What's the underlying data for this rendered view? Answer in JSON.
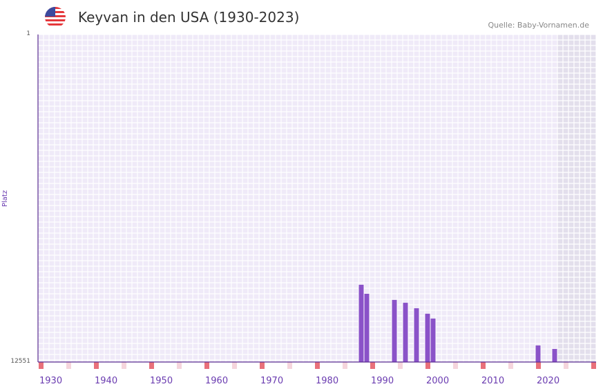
{
  "header": {
    "title": "Keyvan in den USA (1930-2023)",
    "source": "Quelle: Baby-Vornamen.de",
    "flag_icon": "us-flag-icon"
  },
  "colors": {
    "bar": "#8a52c8",
    "decade": "#e8707a",
    "half": "#f5d5dc",
    "grid_bg": "#efeaf8",
    "future": "#e3dfec",
    "axis": "#5a2d91"
  },
  "chart_data": {
    "type": "bar",
    "title": "Keyvan in den USA (1930-2023)",
    "xlabel": "",
    "ylabel": "Platz",
    "xlim": [
      1930,
      2030
    ],
    "ylim": [
      1,
      12551
    ],
    "y_inverted": true,
    "y_ticks": [
      "1",
      "12551"
    ],
    "x_ticks": [
      1930,
      1940,
      1950,
      1960,
      1970,
      1980,
      1990,
      2000,
      2010,
      2020
    ],
    "data_end_year": 2023,
    "points": [
      {
        "year": 1988,
        "rank": 9590
      },
      {
        "year": 1989,
        "rank": 9935
      },
      {
        "year": 1994,
        "rank": 10170
      },
      {
        "year": 1996,
        "rank": 10280
      },
      {
        "year": 1998,
        "rank": 10490
      },
      {
        "year": 2000,
        "rank": 10700
      },
      {
        "year": 2001,
        "rank": 10885
      },
      {
        "year": 2020,
        "rank": 11915
      },
      {
        "year": 2023,
        "rank": 12050
      }
    ]
  }
}
